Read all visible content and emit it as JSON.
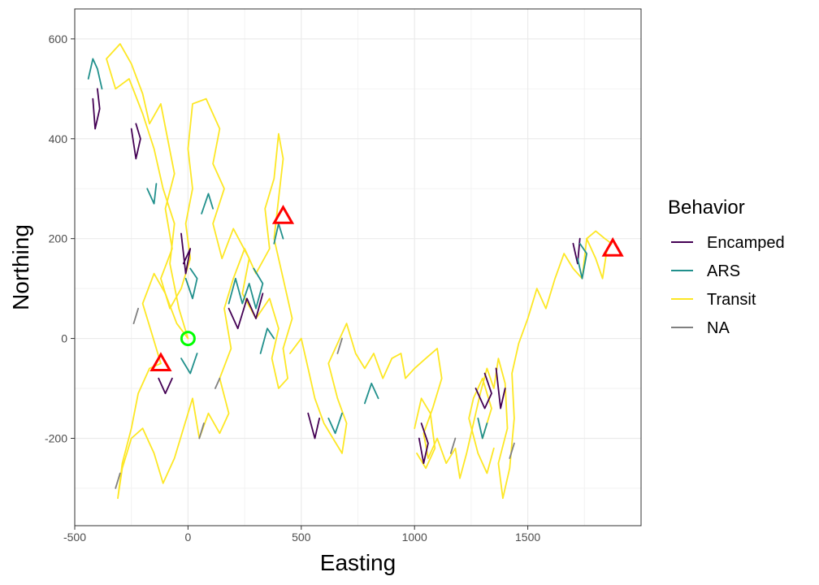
{
  "chart_data": {
    "type": "line",
    "title": "",
    "xlabel": "Easting",
    "ylabel": "Northing",
    "xlim": [
      -500,
      2000
    ],
    "ylim": [
      -375,
      660
    ],
    "xticks": [
      -500,
      0,
      500,
      1000,
      1500
    ],
    "yticks": [
      -200,
      0,
      200,
      400,
      600
    ],
    "xtick_labels": [
      "-500",
      "0",
      "500",
      "1000",
      "1500"
    ],
    "ytick_labels": [
      "-200",
      "0",
      "200",
      "400",
      "600"
    ],
    "grid": true,
    "legend": {
      "title": "Behavior",
      "placement": "right",
      "entries": [
        "Encamped",
        "ARS",
        "Transit",
        "NA"
      ]
    },
    "colors": {
      "Encamped": "#440154",
      "ARS": "#21908C",
      "Transit": "#FDE725",
      "NA": "#808080",
      "start": "#00FF00",
      "end": "#FF0000"
    },
    "series": [
      {
        "name": "Transit",
        "color": "#FDE725",
        "segments": [
          [
            [
              0,
              0
            ],
            [
              -40,
              60
            ],
            [
              -80,
              150
            ],
            [
              -60,
              230
            ],
            [
              -110,
              300
            ],
            [
              -150,
              380
            ],
            [
              -200,
              450
            ],
            [
              -260,
              520
            ],
            [
              -320,
              500
            ],
            [
              -360,
              560
            ],
            [
              -300,
              590
            ],
            [
              -250,
              550
            ],
            [
              -200,
              490
            ],
            [
              -170,
              430
            ],
            [
              -120,
              470
            ],
            [
              -90,
              400
            ]
          ],
          [
            [
              -90,
              400
            ],
            [
              -60,
              330
            ],
            [
              -100,
              260
            ],
            [
              -70,
              180
            ],
            [
              -120,
              120
            ],
            [
              -80,
              60
            ],
            [
              -30,
              100
            ],
            [
              10,
              160
            ],
            [
              -10,
              230
            ],
            [
              20,
              300
            ],
            [
              0,
              380
            ],
            [
              20,
              470
            ],
            [
              80,
              480
            ],
            [
              140,
              420
            ],
            [
              110,
              350
            ],
            [
              160,
              300
            ],
            [
              110,
              230
            ],
            [
              150,
              160
            ],
            [
              200,
              220
            ],
            [
              270,
              160
            ],
            [
              240,
              90
            ],
            [
              300,
              40
            ],
            [
              360,
              80
            ],
            [
              400,
              20
            ],
            [
              370,
              -40
            ],
            [
              400,
              -100
            ],
            [
              440,
              -80
            ],
            [
              420,
              -20
            ]
          ],
          [
            [
              420,
              -20
            ],
            [
              460,
              40
            ],
            [
              420,
              120
            ],
            [
              380,
              200
            ],
            [
              400,
              280
            ],
            [
              420,
              360
            ],
            [
              400,
              410
            ],
            [
              380,
              320
            ],
            [
              340,
              260
            ],
            [
              360,
              180
            ],
            [
              300,
              130
            ],
            [
              250,
              180
            ],
            [
              200,
              120
            ],
            [
              160,
              60
            ],
            [
              190,
              -20
            ],
            [
              140,
              -80
            ],
            [
              180,
              -150
            ],
            [
              140,
              -190
            ],
            [
              90,
              -150
            ],
            [
              50,
              -200
            ],
            [
              20,
              -120
            ],
            [
              -20,
              -180
            ],
            [
              -60,
              -240
            ],
            [
              -110,
              -290
            ],
            [
              -150,
              -230
            ],
            [
              -200,
              -180
            ],
            [
              -250,
              -200
            ],
            [
              -290,
              -260
            ],
            [
              -310,
              -320
            ],
            [
              -290,
              -250
            ],
            [
              -250,
              -180
            ],
            [
              -220,
              -110
            ],
            [
              -170,
              -60
            ],
            [
              -120,
              -50
            ]
          ],
          [
            [
              -120,
              -50
            ],
            [
              -160,
              10
            ],
            [
              -200,
              70
            ],
            [
              -150,
              130
            ],
            [
              -100,
              90
            ],
            [
              -50,
              30
            ],
            [
              0,
              0
            ]
          ],
          [
            [
              450,
              -30
            ],
            [
              500,
              0
            ],
            [
              530,
              -60
            ],
            [
              560,
              -120
            ],
            [
              600,
              -170
            ],
            [
              640,
              -200
            ],
            [
              680,
              -230
            ],
            [
              700,
              -170
            ],
            [
              660,
              -120
            ],
            [
              620,
              -50
            ],
            [
              660,
              -10
            ],
            [
              700,
              30
            ],
            [
              740,
              -30
            ],
            [
              780,
              -60
            ],
            [
              820,
              -30
            ],
            [
              860,
              -80
            ],
            [
              900,
              -40
            ],
            [
              940,
              -30
            ],
            [
              960,
              -80
            ],
            [
              1000,
              -60
            ],
            [
              1050,
              -40
            ],
            [
              1100,
              -20
            ],
            [
              1120,
              -80
            ],
            [
              1080,
              -140
            ],
            [
              1040,
              -190
            ],
            [
              1060,
              -240
            ],
            [
              1100,
              -200
            ],
            [
              1140,
              -250
            ],
            [
              1180,
              -220
            ],
            [
              1200,
              -280
            ],
            [
              1230,
              -230
            ],
            [
              1260,
              -170
            ],
            [
              1290,
              -110
            ],
            [
              1320,
              -60
            ],
            [
              1350,
              -100
            ],
            [
              1370,
              -40
            ],
            [
              1400,
              -90
            ],
            [
              1410,
              -180
            ],
            [
              1370,
              -250
            ],
            [
              1390,
              -320
            ],
            [
              1420,
              -260
            ],
            [
              1440,
              -160
            ],
            [
              1430,
              -70
            ],
            [
              1460,
              -10
            ],
            [
              1500,
              40
            ],
            [
              1540,
              100
            ],
            [
              1580,
              60
            ],
            [
              1620,
              120
            ],
            [
              1660,
              170
            ],
            [
              1700,
              140
            ],
            [
              1740,
              120
            ],
            [
              1760,
              200
            ],
            [
              1800,
              160
            ],
            [
              1830,
              120
            ],
            [
              1850,
              180
            ],
            [
              1870,
              190
            ]
          ],
          [
            [
              1870,
              190
            ],
            [
              1840,
              200
            ],
            [
              1800,
              215
            ],
            [
              1760,
              200
            ]
          ],
          [
            [
              1300,
              -200
            ],
            [
              1340,
              -140
            ],
            [
              1300,
              -80
            ],
            [
              1260,
              -120
            ],
            [
              1240,
              -160
            ],
            [
              1280,
              -230
            ],
            [
              1320,
              -270
            ],
            [
              1350,
              -220
            ]
          ],
          [
            [
              1000,
              -180
            ],
            [
              1030,
              -120
            ],
            [
              1070,
              -150
            ],
            [
              1090,
              -220
            ],
            [
              1050,
              -260
            ],
            [
              1010,
              -230
            ]
          ]
        ]
      },
      {
        "name": "Encamped",
        "color": "#440154",
        "segments": [
          [
            [
              -420,
              480
            ],
            [
              -410,
              420
            ],
            [
              -390,
              460
            ],
            [
              -400,
              500
            ]
          ],
          [
            [
              -250,
              420
            ],
            [
              -230,
              360
            ],
            [
              -210,
              400
            ],
            [
              -230,
              430
            ]
          ],
          [
            [
              -30,
              210
            ],
            [
              -10,
              130
            ],
            [
              10,
              180
            ],
            [
              -20,
              150
            ]
          ],
          [
            [
              180,
              60
            ],
            [
              220,
              20
            ],
            [
              260,
              80
            ],
            [
              300,
              40
            ],
            [
              330,
              90
            ]
          ],
          [
            [
              -130,
              -80
            ],
            [
              -100,
              -110
            ],
            [
              -70,
              -80
            ]
          ],
          [
            [
              530,
              -150
            ],
            [
              560,
              -200
            ],
            [
              580,
              -160
            ]
          ],
          [
            [
              1020,
              -200
            ],
            [
              1040,
              -250
            ],
            [
              1060,
              -210
            ],
            [
              1030,
              -170
            ]
          ],
          [
            [
              1270,
              -100
            ],
            [
              1310,
              -140
            ],
            [
              1340,
              -110
            ],
            [
              1310,
              -70
            ]
          ],
          [
            [
              1360,
              -60
            ],
            [
              1380,
              -140
            ],
            [
              1400,
              -100
            ]
          ],
          [
            [
              1700,
              190
            ],
            [
              1720,
              150
            ],
            [
              1730,
              200
            ]
          ]
        ]
      },
      {
        "name": "ARS",
        "color": "#21908C",
        "segments": [
          [
            [
              -440,
              520
            ],
            [
              -420,
              560
            ],
            [
              -400,
              540
            ],
            [
              -380,
              500
            ]
          ],
          [
            [
              -180,
              300
            ],
            [
              -150,
              270
            ],
            [
              -140,
              310
            ]
          ],
          [
            [
              60,
              250
            ],
            [
              90,
              290
            ],
            [
              110,
              260
            ]
          ],
          [
            [
              -10,
              120
            ],
            [
              20,
              80
            ],
            [
              40,
              120
            ],
            [
              10,
              140
            ]
          ],
          [
            [
              180,
              70
            ],
            [
              210,
              120
            ],
            [
              240,
              70
            ],
            [
              270,
              110
            ],
            [
              300,
              60
            ],
            [
              330,
              110
            ],
            [
              290,
              140
            ]
          ],
          [
            [
              -30,
              -40
            ],
            [
              10,
              -70
            ],
            [
              40,
              -30
            ]
          ],
          [
            [
              320,
              -30
            ],
            [
              350,
              20
            ],
            [
              380,
              0
            ]
          ],
          [
            [
              380,
              190
            ],
            [
              400,
              230
            ],
            [
              420,
              200
            ]
          ],
          [
            [
              620,
              -160
            ],
            [
              650,
              -190
            ],
            [
              680,
              -150
            ]
          ],
          [
            [
              780,
              -130
            ],
            [
              810,
              -90
            ],
            [
              840,
              -120
            ]
          ],
          [
            [
              1280,
              -160
            ],
            [
              1300,
              -200
            ],
            [
              1320,
              -170
            ]
          ],
          [
            [
              1720,
              160
            ],
            [
              1740,
              120
            ],
            [
              1760,
              170
            ],
            [
              1730,
              190
            ]
          ]
        ]
      },
      {
        "name": "NA",
        "color": "#808080",
        "segments": [
          [
            [
              -320,
              -300
            ],
            [
              -300,
              -270
            ]
          ],
          [
            [
              50,
              -200
            ],
            [
              70,
              -170
            ]
          ],
          [
            [
              660,
              -30
            ],
            [
              680,
              0
            ]
          ],
          [
            [
              1160,
              -230
            ],
            [
              1180,
              -200
            ]
          ],
          [
            [
              1420,
              -240
            ],
            [
              1440,
              -210
            ]
          ],
          [
            [
              120,
              -100
            ],
            [
              140,
              -80
            ]
          ],
          [
            [
              -240,
              30
            ],
            [
              -220,
              60
            ]
          ]
        ]
      }
    ],
    "markers": [
      {
        "name": "start",
        "shape": "circle",
        "x": 0,
        "y": 0,
        "color": "#00FF00"
      },
      {
        "name": "end",
        "shape": "triangle",
        "x": -120,
        "y": -50,
        "color": "#FF0000"
      },
      {
        "name": "end",
        "shape": "triangle",
        "x": 420,
        "y": 245,
        "color": "#FF0000"
      },
      {
        "name": "end",
        "shape": "triangle",
        "x": 1875,
        "y": 180,
        "color": "#FF0000"
      }
    ]
  }
}
